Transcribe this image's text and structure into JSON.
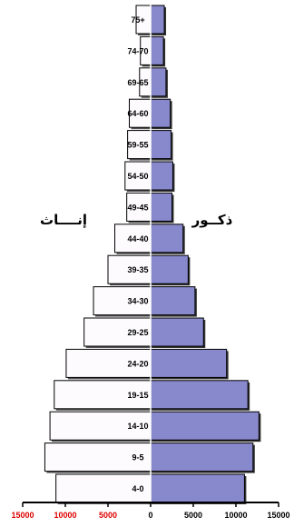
{
  "chart_data": {
    "type": "bar",
    "orientation": "horizontal",
    "categories": [
      "4-0",
      "9-5",
      "14-10",
      "19-15",
      "24-20",
      "29-25",
      "34-30",
      "39-35",
      "44-40",
      "49-45",
      "54-50",
      "59-55",
      "64-60",
      "69-65",
      "74-70",
      "75+"
    ],
    "series": [
      {
        "name": "إنــــاث",
        "side": "left",
        "color": "#fdfbfe",
        "values": [
          11100,
          12400,
          11800,
          11300,
          9900,
          7800,
          6700,
          5000,
          4200,
          2800,
          3000,
          2700,
          2500,
          1300,
          1200,
          1700
        ]
      },
      {
        "name": "ذكــور",
        "side": "right",
        "color": "#8888cc",
        "values": [
          11000,
          12000,
          12700,
          11400,
          8900,
          6200,
          5200,
          4400,
          3800,
          2500,
          2600,
          2400,
          2300,
          1800,
          1500,
          1600
        ]
      }
    ],
    "xlim": [
      -15000,
      15000
    ],
    "x_ticks": [
      {
        "value": -15000,
        "label": "15000"
      },
      {
        "value": -10000,
        "label": "10000"
      },
      {
        "value": -5000,
        "label": "5000"
      },
      {
        "value": 0,
        "label": "0"
      },
      {
        "value": 5000,
        "label": "5000"
      },
      {
        "value": 10000,
        "label": "10000"
      },
      {
        "value": 15000,
        "label": "15000"
      }
    ],
    "left_tick_color": "#dd0000",
    "right_tick_color": "#000000",
    "grid": false,
    "legend": "inline-side-labels"
  }
}
